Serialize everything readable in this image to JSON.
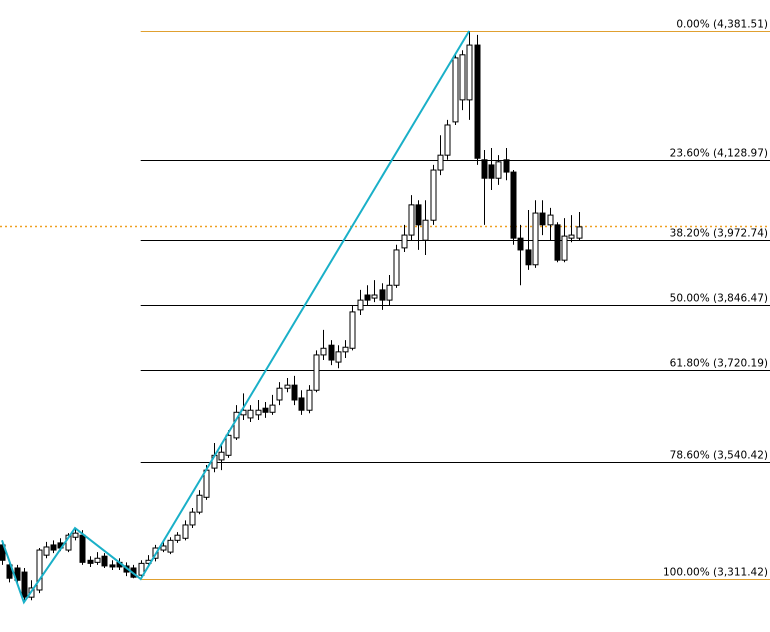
{
  "chart_data": {
    "type": "candlestick",
    "ylim": [
      3208,
      4442
    ],
    "bull_color": "#ffffff",
    "bear_color": "#000000",
    "wick_color": "#000000",
    "current_price": 4000.7,
    "current_price_color": "#f0a020",
    "zigzag": {
      "color": "#1ab0c8",
      "x": [
        0,
        3,
        10,
        19,
        64
      ],
      "values": [
        3387,
        3266,
        3411,
        3311.42,
        4381.51
      ]
    },
    "fib_levels": [
      {
        "value": 4381.51,
        "label": "0.00% (4,381.51)",
        "color": "#e0a030"
      },
      {
        "value": 4128.97,
        "label": "23.60% (4,128.97)",
        "color": "#000000"
      },
      {
        "value": 3972.74,
        "label": "38.20% (3,972.74)",
        "color": "#000000"
      },
      {
        "value": 3846.47,
        "label": "50.00% (3,846.47)",
        "color": "#000000"
      },
      {
        "value": 3720.19,
        "label": "61.80% (3,720.19)",
        "color": "#000000"
      },
      {
        "value": 3540.42,
        "label": "78.60% (3,540.42)",
        "color": "#000000"
      },
      {
        "value": 3311.42,
        "label": "100.00% (3,311.42)",
        "color": "#e0a030"
      }
    ],
    "candles": [
      [
        3378,
        3387,
        3339,
        3348
      ],
      [
        3339,
        3348,
        3305,
        3313
      ],
      [
        3333,
        3339,
        3300,
        3309
      ],
      [
        3325,
        3333,
        3266,
        3276
      ],
      [
        3276,
        3309,
        3270,
        3294
      ],
      [
        3290,
        3372,
        3284,
        3368
      ],
      [
        3358,
        3384,
        3352,
        3374
      ],
      [
        3378,
        3387,
        3362,
        3368
      ],
      [
        3382,
        3391,
        3366,
        3372
      ],
      [
        3368,
        3401,
        3364,
        3397
      ],
      [
        3393,
        3411,
        3387,
        3401
      ],
      [
        3397,
        3407,
        3339,
        3344
      ],
      [
        3348,
        3356,
        3335,
        3342
      ],
      [
        3344,
        3364,
        3339,
        3352
      ],
      [
        3356,
        3362,
        3333,
        3337
      ],
      [
        3339,
        3348,
        3329,
        3335
      ],
      [
        3344,
        3352,
        3329,
        3335
      ],
      [
        3337,
        3344,
        3317,
        3325
      ],
      [
        3333,
        3339,
        3313,
        3315
      ],
      [
        3319,
        3348,
        3311.42,
        3342
      ],
      [
        3342,
        3358,
        3337,
        3348
      ],
      [
        3352,
        3378,
        3346,
        3372
      ],
      [
        3368,
        3384,
        3364,
        3376
      ],
      [
        3364,
        3393,
        3360,
        3387
      ],
      [
        3387,
        3403,
        3382,
        3397
      ],
      [
        3391,
        3426,
        3387,
        3417
      ],
      [
        3417,
        3450,
        3411,
        3442
      ],
      [
        3442,
        3485,
        3438,
        3475
      ],
      [
        3471,
        3534,
        3466,
        3524
      ],
      [
        3528,
        3577,
        3520,
        3553
      ],
      [
        3544,
        3573,
        3524,
        3559
      ],
      [
        3553,
        3602,
        3548,
        3592
      ],
      [
        3587,
        3651,
        3583,
        3637
      ],
      [
        3632,
        3674,
        3622,
        3641
      ],
      [
        3626,
        3651,
        3618,
        3641
      ],
      [
        3632,
        3661,
        3622,
        3641
      ],
      [
        3645,
        3657,
        3626,
        3637
      ],
      [
        3637,
        3671,
        3632,
        3651
      ],
      [
        3661,
        3696,
        3651,
        3684
      ],
      [
        3684,
        3704,
        3676,
        3690
      ],
      [
        3690,
        3708,
        3651,
        3661
      ],
      [
        3665,
        3680,
        3632,
        3641
      ],
      [
        3641,
        3690,
        3635,
        3680
      ],
      [
        3680,
        3758,
        3676,
        3749
      ],
      [
        3749,
        3798,
        3739,
        3762
      ],
      [
        3768,
        3778,
        3729,
        3739
      ],
      [
        3735,
        3768,
        3723,
        3755
      ],
      [
        3755,
        3778,
        3743,
        3764
      ],
      [
        3762,
        3846,
        3758,
        3833
      ],
      [
        3837,
        3876,
        3827,
        3856
      ],
      [
        3866,
        3885,
        3846,
        3856
      ],
      [
        3860,
        3895,
        3852,
        3866
      ],
      [
        3876,
        3889,
        3837,
        3856
      ],
      [
        3856,
        3905,
        3846,
        3885
      ],
      [
        3885,
        3964,
        3880,
        3954
      ],
      [
        3958,
        4003,
        3950,
        3983
      ],
      [
        3983,
        4061,
        3973,
        4042
      ],
      [
        4042,
        4051,
        3954,
        4003
      ],
      [
        3973,
        4051,
        3944,
        4012
      ],
      [
        4012,
        4120,
        4003,
        4110
      ],
      [
        4110,
        4178,
        4100,
        4139
      ],
      [
        4139,
        4208,
        4130,
        4198
      ],
      [
        4204,
        4335,
        4198,
        4329
      ],
      [
        4247,
        4344,
        4227,
        4335
      ],
      [
        4247,
        4381.51,
        4208,
        4354
      ],
      [
        4354,
        4374,
        4120,
        4133
      ],
      [
        4130,
        4149,
        4003,
        4094
      ],
      [
        4120,
        4153,
        4071,
        4094
      ],
      [
        4094,
        4139,
        4081,
        4126
      ],
      [
        4130,
        4153,
        4090,
        4106
      ],
      [
        4106,
        4110,
        3964,
        3977
      ],
      [
        3977,
        4003,
        3885,
        3954
      ],
      [
        3954,
        4032,
        3915,
        3925
      ],
      [
        3925,
        4051,
        3919,
        4026
      ],
      [
        4026,
        4051,
        3983,
        4003
      ],
      [
        4003,
        4036,
        3973,
        4022
      ],
      [
        4003,
        4008,
        3930,
        3934
      ],
      [
        3934,
        4016,
        3930,
        3981
      ],
      [
        3977,
        4022,
        3969,
        3983
      ],
      [
        3977,
        4028,
        3973,
        3999
      ]
    ]
  }
}
